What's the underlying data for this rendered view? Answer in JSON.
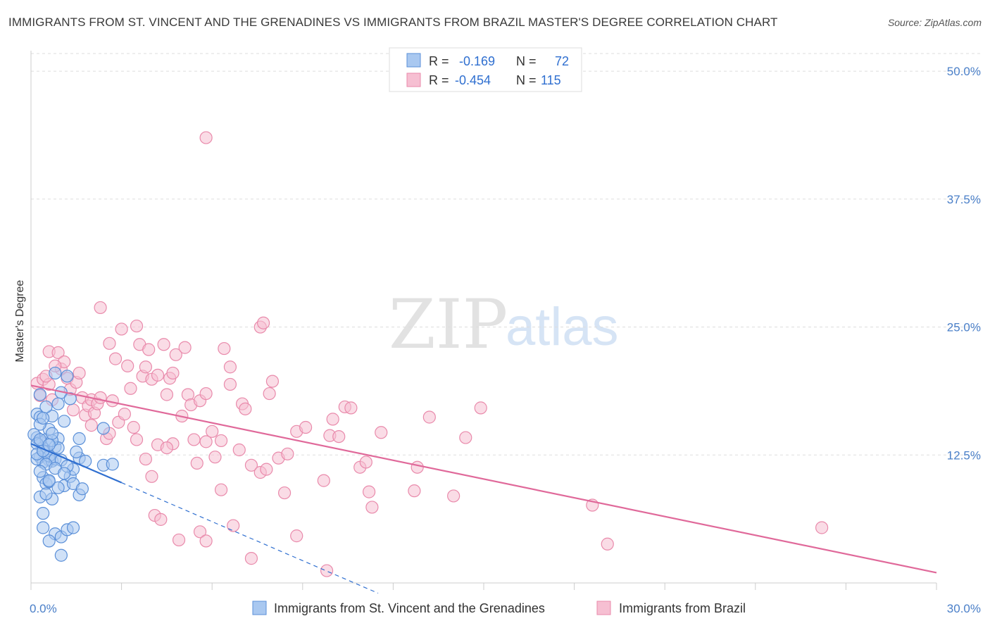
{
  "title": "IMMIGRANTS FROM ST. VINCENT AND THE GRENADINES VS IMMIGRANTS FROM BRAZIL MASTER'S DEGREE CORRELATION CHART",
  "source": "Source: ZipAtlas.com",
  "watermark": {
    "zip": "ZIP",
    "atlas": "atlas"
  },
  "colors": {
    "blue_fill": "#a9c8f0",
    "blue_stroke": "#5a8fd8",
    "blue_line": "#2f6fd0",
    "pink_fill": "#f6bfd2",
    "pink_stroke": "#e98aab",
    "pink_line": "#e0699a",
    "grid": "#dddddd",
    "tick_text": "#4a7fc8"
  },
  "legend": {
    "series1": {
      "r_label": "R =",
      "r_value": "-0.169",
      "n_label": "N =",
      "n_value": "72"
    },
    "series2": {
      "r_label": "R =",
      "r_value": "-0.454",
      "n_label": "N =",
      "n_value": "115"
    }
  },
  "chart_data": {
    "type": "scatter",
    "title": "IMMIGRANTS FROM ST. VINCENT AND THE GRENADINES VS IMMIGRANTS FROM BRAZIL MASTER'S DEGREE CORRELATION CHART",
    "xlabel": "",
    "ylabel": "Master's Degree",
    "xlim": [
      0,
      30
    ],
    "ylim": [
      0,
      52
    ],
    "x_tick_labels": [
      {
        "value": 0,
        "label": "0.0%"
      },
      {
        "value": 30,
        "label": "30.0%"
      }
    ],
    "y_tick_labels": [
      {
        "value": 12.5,
        "label": "12.5%"
      },
      {
        "value": 25,
        "label": "25.0%"
      },
      {
        "value": 37.5,
        "label": "37.5%"
      },
      {
        "value": 50,
        "label": "50.0%"
      }
    ],
    "series": [
      {
        "name": "Immigrants from St. Vincent and the Grenadines",
        "color": "#5a8fd8",
        "trend": {
          "x0": 0,
          "y0": 13.6,
          "x1": 3.0,
          "y1": 9.8,
          "dash_to_x": 11.5,
          "dash_to_y": -1.0
        },
        "points": [
          [
            0.2,
            16.5
          ],
          [
            0.3,
            16.2
          ],
          [
            0.2,
            14.2
          ],
          [
            0.3,
            13.8
          ],
          [
            0.1,
            14.5
          ],
          [
            0.4,
            13.2
          ],
          [
            0.5,
            12.8
          ],
          [
            0.3,
            12.3
          ],
          [
            0.6,
            12.0
          ],
          [
            0.4,
            11.8
          ],
          [
            0.7,
            11.9
          ],
          [
            0.5,
            14.0
          ],
          [
            0.8,
            13.3
          ],
          [
            0.9,
            14.1
          ],
          [
            0.6,
            15.0
          ],
          [
            0.7,
            16.3
          ],
          [
            0.5,
            17.2
          ],
          [
            0.3,
            18.4
          ],
          [
            1.0,
            18.6
          ],
          [
            1.2,
            20.2
          ],
          [
            0.8,
            20.5
          ],
          [
            1.1,
            15.8
          ],
          [
            1.3,
            18.0
          ],
          [
            0.9,
            17.5
          ],
          [
            0.2,
            12.1
          ],
          [
            0.4,
            10.3
          ],
          [
            0.5,
            9.7
          ],
          [
            0.6,
            9.9
          ],
          [
            0.3,
            8.4
          ],
          [
            0.7,
            8.2
          ],
          [
            0.4,
            6.8
          ],
          [
            1.1,
            9.5
          ],
          [
            1.3,
            10.4
          ],
          [
            1.4,
            9.7
          ],
          [
            1.6,
            8.6
          ],
          [
            1.7,
            9.2
          ],
          [
            1.4,
            11.1
          ],
          [
            1.6,
            12.2
          ],
          [
            1.8,
            11.9
          ],
          [
            1.5,
            12.8
          ],
          [
            1.6,
            14.1
          ],
          [
            2.4,
            15.1
          ],
          [
            2.4,
            11.5
          ],
          [
            2.7,
            11.6
          ],
          [
            0.4,
            5.4
          ],
          [
            0.8,
            4.8
          ],
          [
            1.0,
            4.5
          ],
          [
            1.2,
            5.2
          ],
          [
            1.4,
            5.4
          ],
          [
            0.6,
            4.1
          ],
          [
            1.0,
            2.7
          ],
          [
            0.2,
            13.6
          ],
          [
            0.3,
            15.5
          ],
          [
            0.6,
            12.4
          ],
          [
            0.8,
            12.1
          ],
          [
            0.4,
            16.1
          ],
          [
            0.9,
            13.2
          ],
          [
            0.5,
            11.6
          ],
          [
            0.2,
            12.6
          ],
          [
            0.7,
            13.9
          ],
          [
            1.0,
            12.0
          ],
          [
            0.6,
            10.0
          ],
          [
            0.3,
            10.9
          ],
          [
            1.2,
            11.4
          ],
          [
            0.8,
            11.2
          ],
          [
            0.4,
            12.9
          ],
          [
            0.9,
            9.3
          ],
          [
            0.5,
            8.7
          ],
          [
            1.1,
            10.7
          ],
          [
            0.7,
            14.6
          ],
          [
            0.3,
            14.0
          ],
          [
            0.6,
            13.5
          ]
        ]
      },
      {
        "name": "Immigrants from Brazil",
        "color": "#e98aab",
        "trend": {
          "x0": 0,
          "y0": 19.3,
          "x1": 30,
          "y1": 1.0
        },
        "points": [
          [
            0.2,
            19.5
          ],
          [
            0.3,
            18.3
          ],
          [
            0.4,
            19.9
          ],
          [
            0.6,
            19.4
          ],
          [
            0.7,
            17.9
          ],
          [
            0.5,
            20.2
          ],
          [
            0.6,
            22.6
          ],
          [
            0.9,
            22.5
          ],
          [
            1.0,
            20.9
          ],
          [
            1.1,
            21.6
          ],
          [
            0.8,
            21.2
          ],
          [
            1.2,
            20.0
          ],
          [
            1.3,
            18.9
          ],
          [
            1.5,
            19.6
          ],
          [
            1.6,
            20.5
          ],
          [
            1.7,
            18.1
          ],
          [
            1.8,
            16.4
          ],
          [
            1.9,
            17.3
          ],
          [
            2.0,
            17.9
          ],
          [
            2.1,
            16.6
          ],
          [
            2.2,
            17.5
          ],
          [
            2.3,
            18.1
          ],
          [
            2.5,
            14.1
          ],
          [
            2.6,
            14.6
          ],
          [
            2.3,
            26.9
          ],
          [
            2.6,
            23.4
          ],
          [
            2.8,
            21.9
          ],
          [
            3.0,
            24.8
          ],
          [
            3.2,
            21.2
          ],
          [
            3.3,
            19.0
          ],
          [
            3.5,
            25.1
          ],
          [
            3.6,
            23.3
          ],
          [
            3.7,
            20.2
          ],
          [
            3.8,
            21.1
          ],
          [
            3.9,
            22.8
          ],
          [
            4.0,
            19.9
          ],
          [
            4.2,
            20.3
          ],
          [
            4.4,
            23.3
          ],
          [
            4.5,
            18.4
          ],
          [
            4.6,
            20.0
          ],
          [
            4.7,
            20.5
          ],
          [
            4.8,
            22.3
          ],
          [
            5.0,
            16.3
          ],
          [
            5.1,
            23.0
          ],
          [
            5.2,
            18.4
          ],
          [
            5.3,
            17.4
          ],
          [
            5.6,
            17.8
          ],
          [
            5.8,
            18.5
          ],
          [
            4.2,
            13.5
          ],
          [
            4.7,
            13.6
          ],
          [
            5.5,
            11.7
          ],
          [
            5.8,
            13.8
          ],
          [
            3.8,
            12.1
          ],
          [
            4.0,
            10.4
          ],
          [
            4.1,
            6.6
          ],
          [
            4.3,
            6.2
          ],
          [
            5.6,
            5.0
          ],
          [
            5.8,
            4.1
          ],
          [
            6.0,
            14.8
          ],
          [
            6.1,
            12.3
          ],
          [
            6.3,
            9.1
          ],
          [
            6.4,
            22.9
          ],
          [
            6.6,
            21.1
          ],
          [
            6.6,
            19.4
          ],
          [
            7.0,
            17.5
          ],
          [
            7.1,
            17.0
          ],
          [
            7.3,
            11.5
          ],
          [
            7.6,
            25.0
          ],
          [
            7.7,
            25.4
          ],
          [
            7.6,
            10.8
          ],
          [
            7.8,
            11.1
          ],
          [
            7.9,
            18.5
          ],
          [
            8.0,
            19.7
          ],
          [
            8.2,
            12.2
          ],
          [
            8.4,
            8.8
          ],
          [
            8.8,
            14.8
          ],
          [
            8.8,
            4.6
          ],
          [
            9.1,
            15.2
          ],
          [
            9.7,
            10.0
          ],
          [
            9.9,
            14.4
          ],
          [
            10.0,
            16.0
          ],
          [
            10.4,
            17.2
          ],
          [
            10.6,
            17.1
          ],
          [
            10.9,
            11.3
          ],
          [
            11.1,
            11.8
          ],
          [
            11.2,
            8.9
          ],
          [
            11.3,
            7.4
          ],
          [
            11.6,
            14.7
          ],
          [
            12.7,
            9.0
          ],
          [
            12.8,
            11.3
          ],
          [
            13.2,
            16.2
          ],
          [
            14.0,
            8.5
          ],
          [
            14.4,
            14.2
          ],
          [
            14.9,
            17.1
          ],
          [
            18.6,
            7.6
          ],
          [
            19.1,
            3.8
          ],
          [
            26.2,
            5.4
          ],
          [
            5.8,
            43.5
          ],
          [
            6.3,
            13.9
          ],
          [
            2.9,
            15.7
          ],
          [
            3.5,
            14.0
          ],
          [
            1.4,
            16.9
          ],
          [
            6.7,
            5.6
          ],
          [
            7.3,
            2.4
          ],
          [
            9.8,
            1.2
          ],
          [
            6.9,
            13.0
          ],
          [
            4.9,
            4.2
          ],
          [
            3.1,
            16.5
          ],
          [
            2.7,
            17.8
          ],
          [
            8.5,
            12.6
          ],
          [
            10.2,
            14.3
          ],
          [
            5.4,
            14.0
          ],
          [
            3.4,
            15.2
          ],
          [
            2.0,
            15.4
          ],
          [
            4.5,
            13.2
          ]
        ]
      }
    ]
  }
}
